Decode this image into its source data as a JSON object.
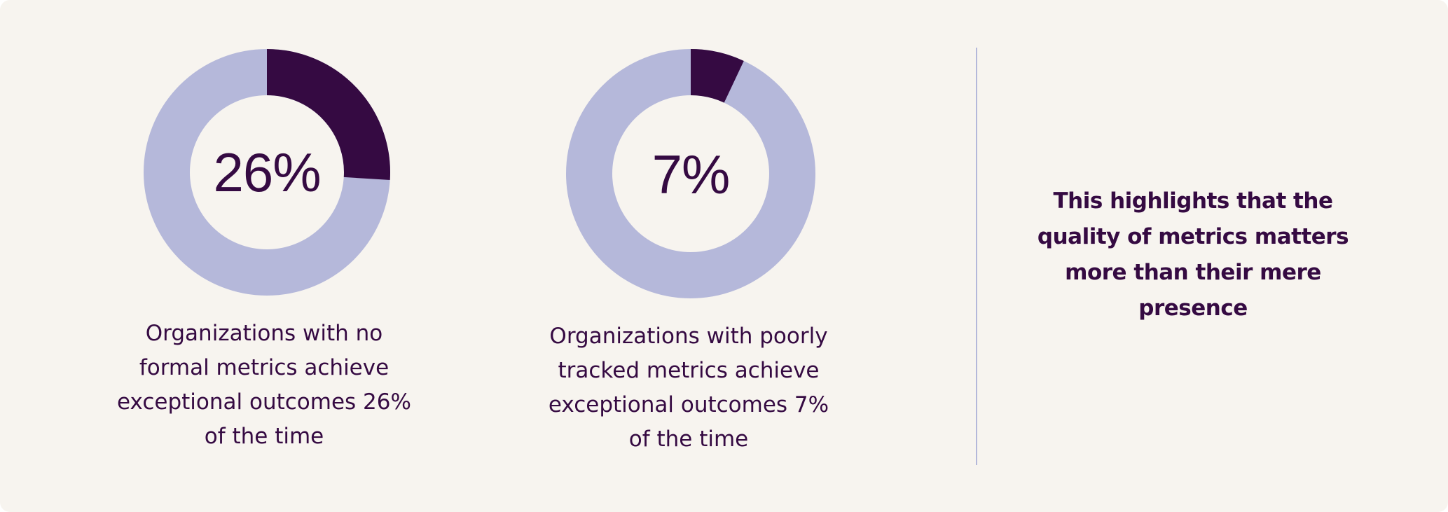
{
  "chart_data": [
    {
      "type": "pie",
      "variant": "donut",
      "value": 26,
      "remainder": 74,
      "center_label": "26%",
      "caption": "Organizations with no formal metrics achieve exceptional outcomes 26% of the time"
    },
    {
      "type": "pie",
      "variant": "donut",
      "value": 7,
      "remainder": 93,
      "center_label": "7%",
      "caption": "Organizations with poorly tracked metrics achieve exceptional outcomes 7% of the time"
    }
  ],
  "highlight": {
    "text": "This highlights that the quality of metrics matters more than their mere presence"
  },
  "colors": {
    "background": "#f7f4ef",
    "value": "#350a42",
    "remainder": "#b5b8da",
    "divider": "#b4b8da",
    "text": "#350a42"
  }
}
